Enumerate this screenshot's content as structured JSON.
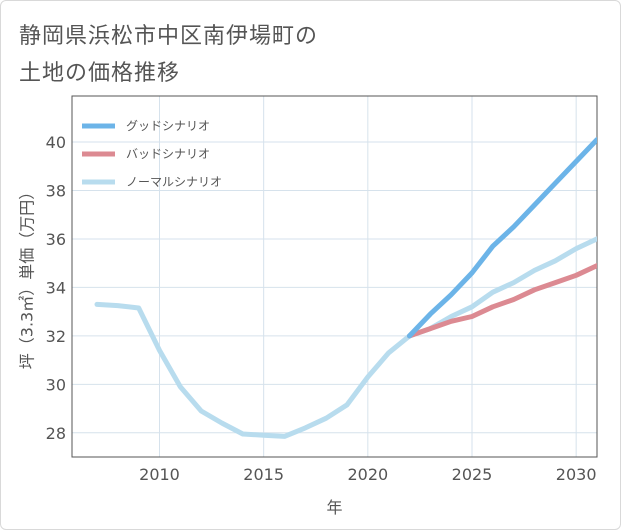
{
  "title_line1": "静岡県浜松市中区南伊場町の",
  "title_line2": "土地の価格推移",
  "chart_data": {
    "type": "line",
    "xlabel": "年",
    "ylabel": "坪（3.3㎡）単価（万円）",
    "xlim": [
      2005.8,
      2031
    ],
    "ylim": [
      27,
      41.9
    ],
    "xticks": [
      2010,
      2015,
      2020,
      2025,
      2030
    ],
    "yticks": [
      28,
      30,
      32,
      34,
      36,
      38,
      40
    ],
    "legend_position": "top-left",
    "series": [
      {
        "name": "グッドシナリオ",
        "color": "#6cb4e8",
        "x": [
          2022,
          2023,
          2024,
          2025,
          2026,
          2027,
          2028,
          2029,
          2030,
          2031
        ],
        "y": [
          32.0,
          32.9,
          33.7,
          34.6,
          35.7,
          36.5,
          37.4,
          38.3,
          39.2,
          40.1
        ]
      },
      {
        "name": "バッドシナリオ",
        "color": "#dc8a92",
        "x": [
          2022,
          2023,
          2024,
          2025,
          2026,
          2027,
          2028,
          2029,
          2030,
          2031
        ],
        "y": [
          32.0,
          32.3,
          32.6,
          32.8,
          33.2,
          33.5,
          33.9,
          34.2,
          34.5,
          34.9
        ]
      },
      {
        "name": "ノーマルシナリオ",
        "color": "#b8dcee",
        "x": [
          2007,
          2008,
          2009,
          2010,
          2011,
          2012,
          2013,
          2014,
          2015,
          2016,
          2017,
          2018,
          2019,
          2020,
          2021,
          2022,
          2023,
          2024,
          2025,
          2026,
          2027,
          2028,
          2029,
          2030,
          2031
        ],
        "y": [
          33.3,
          33.25,
          33.15,
          31.4,
          29.9,
          28.9,
          28.4,
          27.95,
          27.9,
          27.85,
          28.2,
          28.6,
          29.15,
          30.3,
          31.3,
          32.0,
          32.3,
          32.8,
          33.2,
          33.8,
          34.2,
          34.7,
          35.1,
          35.6,
          36.0
        ]
      }
    ]
  }
}
